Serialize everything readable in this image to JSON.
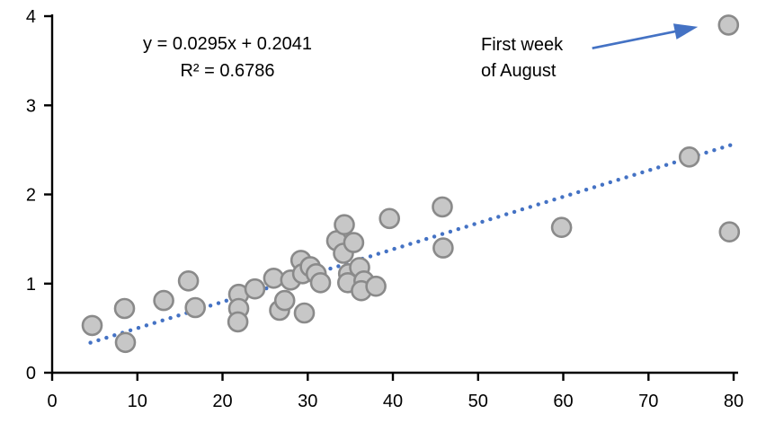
{
  "chart_data": {
    "type": "scatter",
    "title": "",
    "xlabel": "",
    "ylabel": "",
    "grid": false,
    "legend": null,
    "x_axis": {
      "min": 0,
      "max": 80,
      "ticks": [
        0,
        10,
        20,
        30,
        40,
        50,
        60,
        70,
        80
      ]
    },
    "y_axis": {
      "min": 0,
      "max": 4,
      "ticks": [
        0,
        1,
        2,
        3,
        4
      ]
    },
    "points": [
      [
        4.7,
        0.53
      ],
      [
        8.5,
        0.72
      ],
      [
        8.6,
        0.34
      ],
      [
        13.1,
        0.81
      ],
      [
        16.0,
        1.03
      ],
      [
        16.8,
        0.73
      ],
      [
        21.9,
        0.88
      ],
      [
        21.9,
        0.72
      ],
      [
        21.8,
        0.57
      ],
      [
        23.8,
        0.94
      ],
      [
        26.0,
        1.06
      ],
      [
        26.7,
        0.7
      ],
      [
        27.3,
        0.81
      ],
      [
        28.0,
        1.04
      ],
      [
        29.2,
        1.26
      ],
      [
        29.4,
        1.11
      ],
      [
        29.6,
        0.67
      ],
      [
        30.3,
        1.19
      ],
      [
        31.0,
        1.11
      ],
      [
        31.5,
        1.01
      ],
      [
        33.4,
        1.48
      ],
      [
        34.3,
        1.66
      ],
      [
        34.2,
        1.34
      ],
      [
        35.4,
        1.46
      ],
      [
        34.8,
        1.11
      ],
      [
        34.7,
        1.01
      ],
      [
        36.1,
        1.18
      ],
      [
        36.6,
        1.03
      ],
      [
        36.3,
        0.92
      ],
      [
        38.0,
        0.97
      ],
      [
        39.6,
        1.73
      ],
      [
        45.8,
        1.86
      ],
      [
        45.9,
        1.4
      ],
      [
        59.8,
        1.63
      ],
      [
        74.8,
        2.42
      ],
      [
        79.4,
        3.9
      ],
      [
        79.5,
        1.58
      ]
    ],
    "trendline": {
      "slope": 0.0295,
      "intercept": 0.2041,
      "x_start": 4.5,
      "x_end": 79.6,
      "style": "dotted",
      "equation_label": "y = 0.0295x + 0.2041",
      "r_squared_label": "R² = 0.6786"
    },
    "annotation": {
      "line1": "First week",
      "line2": "of August",
      "arrow_from": [
        63.4,
        3.64
      ],
      "arrow_to": [
        75.8,
        3.88
      ],
      "target_point": [
        79.4,
        3.9
      ]
    },
    "colors": {
      "marker_fill": "#c7c7c7",
      "marker_stroke": "#8a8a8a",
      "trend": "#4472c4",
      "arrow": "#4472c4",
      "axis": "#000000",
      "text": "#000000"
    }
  }
}
